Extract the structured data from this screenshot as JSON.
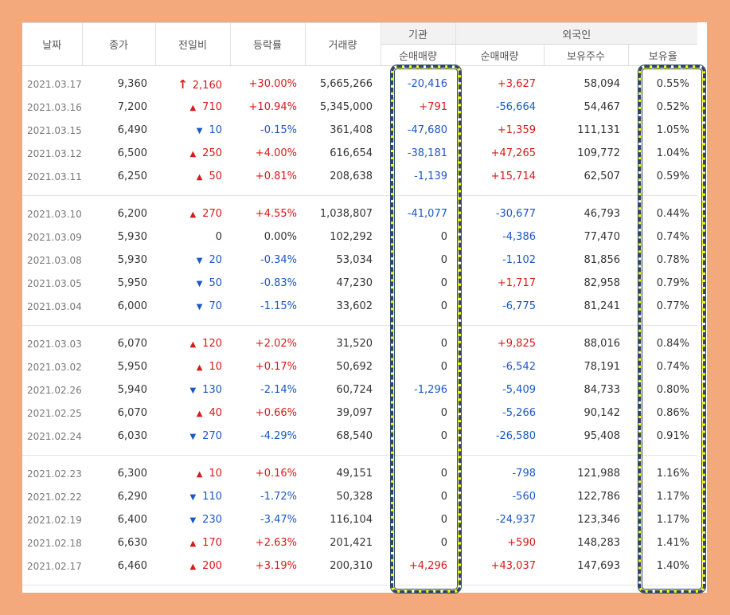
{
  "headers": {
    "date": "날짜",
    "close": "종가",
    "change": "전일비",
    "rate": "등락률",
    "volume": "거래량",
    "institution": "기관",
    "inst_net": "순매매량",
    "foreign": "외국인",
    "foreign_net": "순매매량",
    "foreign_holdings": "보유주수",
    "foreign_ratio": "보유율"
  },
  "colors": {
    "up": "#d81919",
    "down": "#1a58c4",
    "highlight": "#f4f41a"
  },
  "groups": [
    [
      {
        "date": "2021.03.17",
        "close": "9,360",
        "dir": "limit",
        "change": "2,160",
        "rate": "+30.00%",
        "volume": "5,665,266",
        "inst": "-20,416",
        "foreign": "+3,627",
        "holdings": "58,094",
        "ratio": "0.55%"
      },
      {
        "date": "2021.03.16",
        "close": "7,200",
        "dir": "up",
        "change": "710",
        "rate": "+10.94%",
        "volume": "5,345,000",
        "inst": "+791",
        "foreign": "-56,664",
        "holdings": "54,467",
        "ratio": "0.52%"
      },
      {
        "date": "2021.03.15",
        "close": "6,490",
        "dir": "down",
        "change": "10",
        "rate": "-0.15%",
        "volume": "361,408",
        "inst": "-47,680",
        "foreign": "+1,359",
        "holdings": "111,131",
        "ratio": "1.05%"
      },
      {
        "date": "2021.03.12",
        "close": "6,500",
        "dir": "up",
        "change": "250",
        "rate": "+4.00%",
        "volume": "616,654",
        "inst": "-38,181",
        "foreign": "+47,265",
        "holdings": "109,772",
        "ratio": "1.04%"
      },
      {
        "date": "2021.03.11",
        "close": "6,250",
        "dir": "up",
        "change": "50",
        "rate": "+0.81%",
        "volume": "208,638",
        "inst": "-1,139",
        "foreign": "+15,714",
        "holdings": "62,507",
        "ratio": "0.59%"
      }
    ],
    [
      {
        "date": "2021.03.10",
        "close": "6,200",
        "dir": "up",
        "change": "270",
        "rate": "+4.55%",
        "volume": "1,038,807",
        "inst": "-41,077",
        "foreign": "-30,677",
        "holdings": "46,793",
        "ratio": "0.44%"
      },
      {
        "date": "2021.03.09",
        "close": "5,930",
        "dir": "none",
        "change": "0",
        "rate": "0.00%",
        "volume": "102,292",
        "inst": "0",
        "foreign": "-4,386",
        "holdings": "77,470",
        "ratio": "0.74%"
      },
      {
        "date": "2021.03.08",
        "close": "5,930",
        "dir": "down",
        "change": "20",
        "rate": "-0.34%",
        "volume": "53,034",
        "inst": "0",
        "foreign": "-1,102",
        "holdings": "81,856",
        "ratio": "0.78%"
      },
      {
        "date": "2021.03.05",
        "close": "5,950",
        "dir": "down",
        "change": "50",
        "rate": "-0.83%",
        "volume": "47,230",
        "inst": "0",
        "foreign": "+1,717",
        "holdings": "82,958",
        "ratio": "0.79%"
      },
      {
        "date": "2021.03.04",
        "close": "6,000",
        "dir": "down",
        "change": "70",
        "rate": "-1.15%",
        "volume": "33,602",
        "inst": "0",
        "foreign": "-6,775",
        "holdings": "81,241",
        "ratio": "0.77%"
      }
    ],
    [
      {
        "date": "2021.03.03",
        "close": "6,070",
        "dir": "up",
        "change": "120",
        "rate": "+2.02%",
        "volume": "31,520",
        "inst": "0",
        "foreign": "+9,825",
        "holdings": "88,016",
        "ratio": "0.84%"
      },
      {
        "date": "2021.03.02",
        "close": "5,950",
        "dir": "up",
        "change": "10",
        "rate": "+0.17%",
        "volume": "50,692",
        "inst": "0",
        "foreign": "-6,542",
        "holdings": "78,191",
        "ratio": "0.74%"
      },
      {
        "date": "2021.02.26",
        "close": "5,940",
        "dir": "down",
        "change": "130",
        "rate": "-2.14%",
        "volume": "60,724",
        "inst": "-1,296",
        "foreign": "-5,409",
        "holdings": "84,733",
        "ratio": "0.80%"
      },
      {
        "date": "2021.02.25",
        "close": "6,070",
        "dir": "up",
        "change": "40",
        "rate": "+0.66%",
        "volume": "39,097",
        "inst": "0",
        "foreign": "-5,266",
        "holdings": "90,142",
        "ratio": "0.86%"
      },
      {
        "date": "2021.02.24",
        "close": "6,030",
        "dir": "down",
        "change": "270",
        "rate": "-4.29%",
        "volume": "68,540",
        "inst": "0",
        "foreign": "-26,580",
        "holdings": "95,408",
        "ratio": "0.91%"
      }
    ],
    [
      {
        "date": "2021.02.23",
        "close": "6,300",
        "dir": "up",
        "change": "10",
        "rate": "+0.16%",
        "volume": "49,151",
        "inst": "0",
        "foreign": "-798",
        "holdings": "121,988",
        "ratio": "1.16%"
      },
      {
        "date": "2021.02.22",
        "close": "6,290",
        "dir": "down",
        "change": "110",
        "rate": "-1.72%",
        "volume": "50,328",
        "inst": "0",
        "foreign": "-560",
        "holdings": "122,786",
        "ratio": "1.17%"
      },
      {
        "date": "2021.02.19",
        "close": "6,400",
        "dir": "down",
        "change": "230",
        "rate": "-3.47%",
        "volume": "116,104",
        "inst": "0",
        "foreign": "-24,937",
        "holdings": "123,346",
        "ratio": "1.17%"
      },
      {
        "date": "2021.02.18",
        "close": "6,630",
        "dir": "up",
        "change": "170",
        "rate": "+2.63%",
        "volume": "201,421",
        "inst": "0",
        "foreign": "+590",
        "holdings": "148,283",
        "ratio": "1.41%"
      },
      {
        "date": "2021.02.17",
        "close": "6,460",
        "dir": "up",
        "change": "200",
        "rate": "+3.19%",
        "volume": "200,310",
        "inst": "+4,296",
        "foreign": "+43,037",
        "holdings": "147,693",
        "ratio": "1.40%"
      }
    ]
  ]
}
